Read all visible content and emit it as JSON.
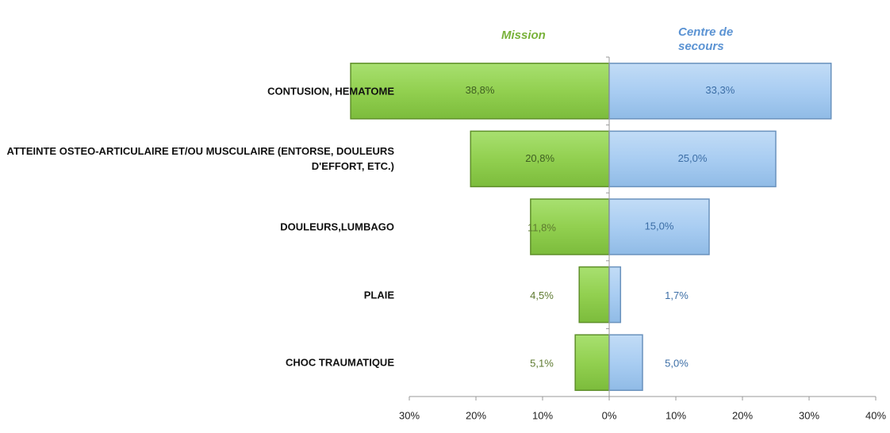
{
  "chart_data": {
    "type": "butterfly",
    "categories": [
      "CONTUSION, HEMATOME",
      "ATTEINTE OSTEO-ARTICULAIRE ET/OU MUSCULAIRE (ENTORSE, DOULEURS D'EFFORT, ETC.)",
      "DOULEURS,LUMBAGO",
      "PLAIE",
      "CHOC TRAUMATIQUE"
    ],
    "series": [
      {
        "name": "Mission",
        "color": "#92d050",
        "values": [
          -38.8,
          -20.8,
          -11.8,
          -4.5,
          -5.1
        ],
        "value_labels": [
          "38,8%",
          "20,8%",
          "11,8%",
          "4,5%",
          "5,1%"
        ]
      },
      {
        "name": "Centre de secours",
        "color": "#a9cdf2",
        "values": [
          33.3,
          25.0,
          15.0,
          1.7,
          5.0
        ],
        "value_labels": [
          "33,3%",
          "25,0%",
          "15,0%",
          "1,7%",
          "5,0%"
        ]
      }
    ],
    "xlim": [
      -30,
      40
    ],
    "xticks": [
      {
        "value": -30,
        "label": "30%"
      },
      {
        "value": -20,
        "label": "20%"
      },
      {
        "value": -10,
        "label": "10%"
      },
      {
        "value": 0,
        "label": "0%"
      },
      {
        "value": 10,
        "label": "10%"
      },
      {
        "value": 20,
        "label": "20%"
      },
      {
        "value": 30,
        "label": "30%"
      },
      {
        "value": 40,
        "label": "40%"
      }
    ]
  }
}
